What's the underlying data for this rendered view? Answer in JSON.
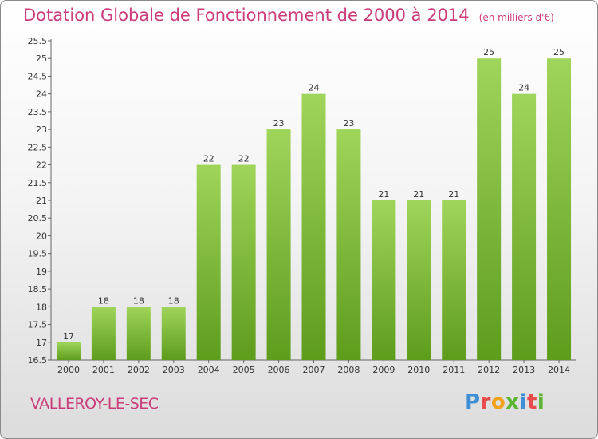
{
  "title": "Dotation Globale de Fonctionnement de 2000 à 2014",
  "unit": "(en milliers d'€)",
  "commune": "VALLEROY-LE-SEC",
  "logo": {
    "letters": [
      "P",
      "r",
      "o",
      "x",
      "i",
      "t",
      "i"
    ],
    "colors": [
      "#3f8fd6",
      "#e84c4c",
      "#f2a21a",
      "#5bb531",
      "#3f8fd6",
      "#e84c4c",
      "#5bb531"
    ]
  },
  "colors": {
    "title": "#cc3b7a",
    "bar_light": "#9fd55a",
    "bar_dark": "#5e9c1c"
  },
  "chart_data": {
    "type": "bar",
    "title": "Dotation Globale de Fonctionnement de 2000 à 2014",
    "categories": [
      "2000",
      "2001",
      "2002",
      "2003",
      "2004",
      "2005",
      "2006",
      "2007",
      "2008",
      "2009",
      "2010",
      "2011",
      "2012",
      "2013",
      "2014"
    ],
    "values": [
      17,
      18,
      18,
      18,
      22,
      22,
      23,
      24,
      23,
      21,
      21,
      21,
      25,
      24,
      25
    ],
    "ylim": [
      16.5,
      25.5
    ],
    "yticks": [
      "16.5",
      "17",
      "17.5",
      "18",
      "18.5",
      "19",
      "19.5",
      "20",
      "20.5",
      "21",
      "21.5",
      "22",
      "22.5",
      "23",
      "23.5",
      "24",
      "24.5",
      "25",
      "25.5"
    ],
    "grid": false
  }
}
